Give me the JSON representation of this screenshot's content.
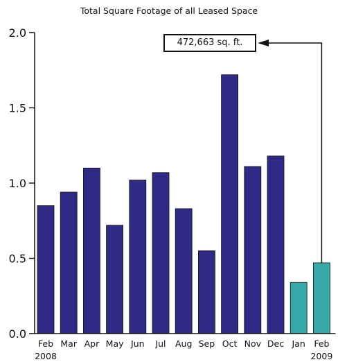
{
  "chart_data": {
    "type": "bar",
    "title": "Total Square Footage of all Leased Space",
    "categories": [
      "Feb",
      "Mar",
      "Apr",
      "May",
      "Jun",
      "Jul",
      "Aug",
      "Sep",
      "Oct",
      "Nov",
      "Dec",
      "Jan",
      "Feb"
    ],
    "year_labels": [
      {
        "index": 0,
        "label": "2008"
      },
      {
        "index": 12,
        "label": "2009"
      }
    ],
    "values": [
      0.85,
      0.94,
      1.1,
      0.72,
      1.02,
      1.07,
      0.83,
      0.55,
      1.72,
      1.11,
      1.18,
      0.34,
      0.47
    ],
    "bar_colors": [
      "#2e2a85",
      "#2e2a85",
      "#2e2a85",
      "#2e2a85",
      "#2e2a85",
      "#2e2a85",
      "#2e2a85",
      "#2e2a85",
      "#2e2a85",
      "#2e2a85",
      "#2e2a85",
      "#37a8a8",
      "#37a8a8"
    ],
    "ylim": [
      0,
      2.0
    ],
    "yticks": [
      0.0,
      0.5,
      1.0,
      1.5,
      2.0
    ],
    "ytick_labels": [
      "0.0",
      "0.5",
      "1.0",
      "1.5",
      "2.0"
    ],
    "xlabel": "",
    "ylabel": "",
    "grid": false,
    "annotation": {
      "text": "472,663 sq. ft.",
      "target_index": 12
    }
  }
}
